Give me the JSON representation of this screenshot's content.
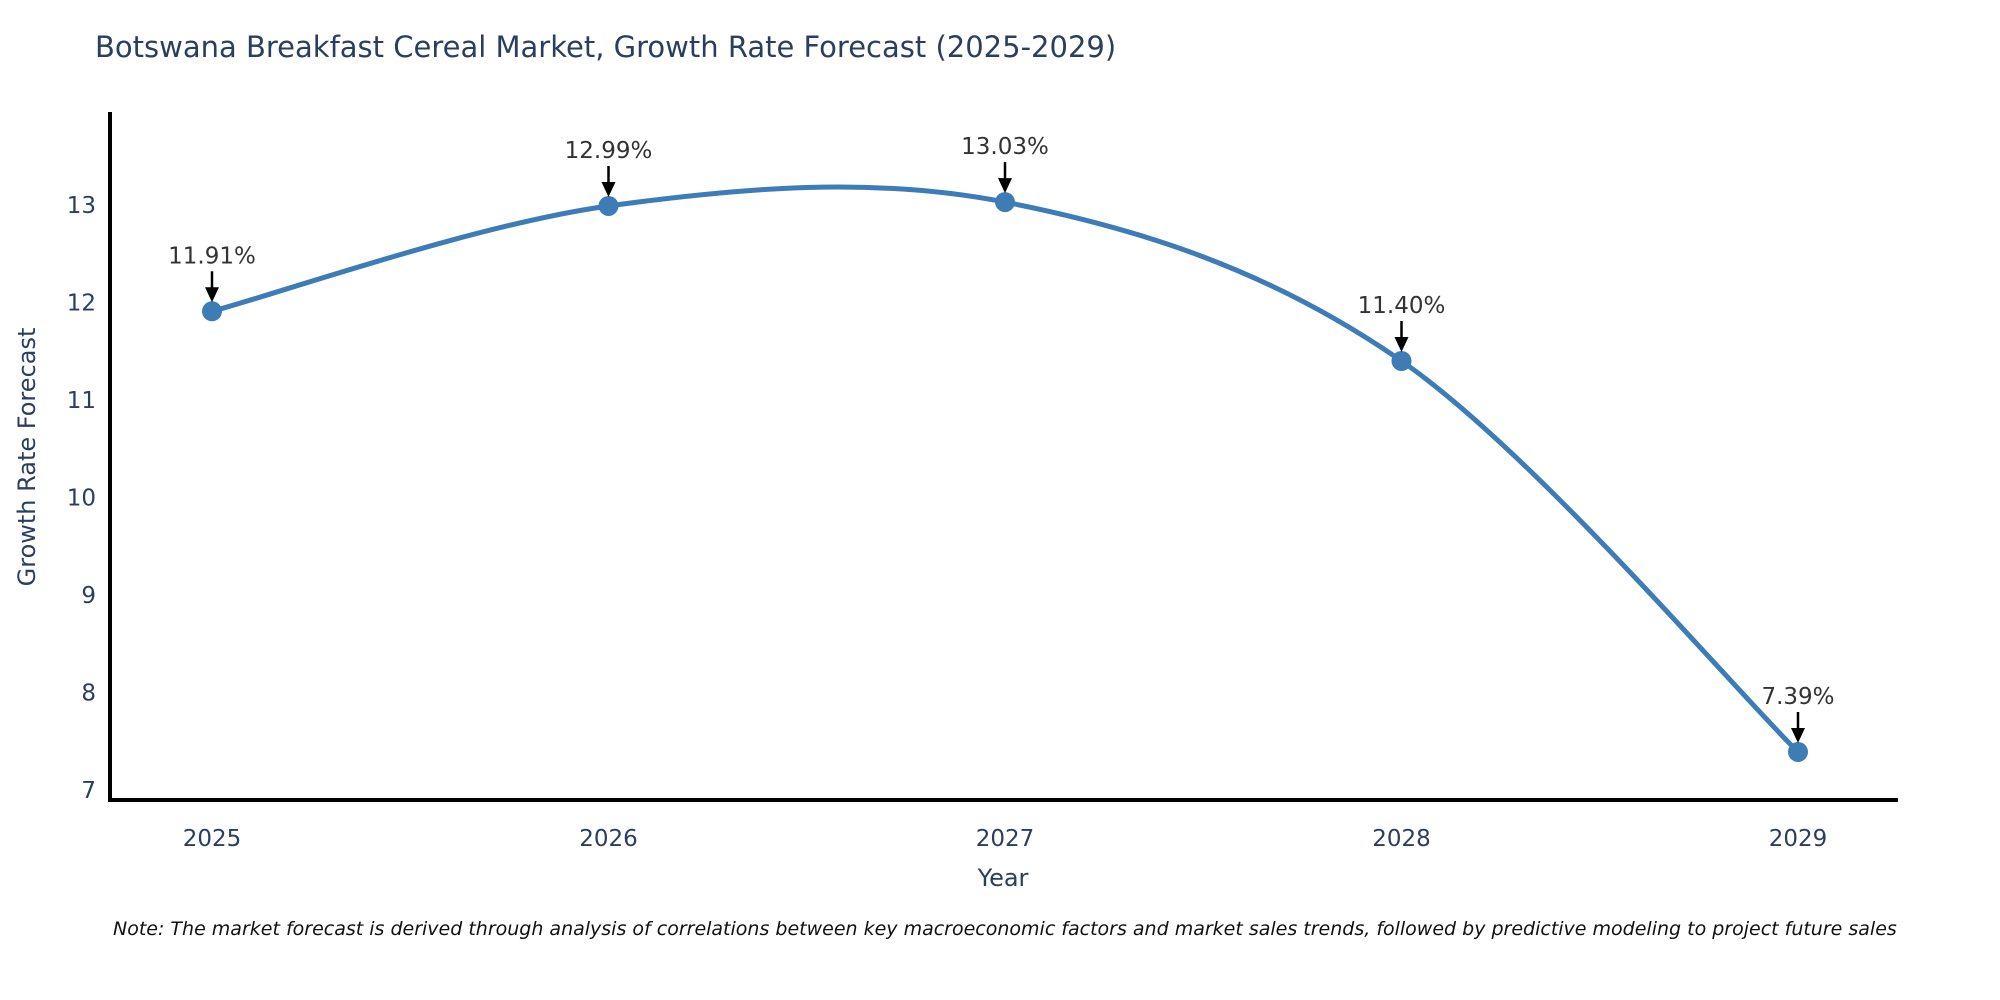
{
  "chart_data": {
    "type": "line",
    "title": "Botswana Breakfast Cereal Market, Growth Rate Forecast (2025-2029)",
    "x": [
      2025,
      2026,
      2027,
      2028,
      2029
    ],
    "values": [
      11.91,
      12.99,
      13.03,
      11.4,
      7.39
    ],
    "point_labels": [
      "11.91%",
      "12.99%",
      "13.03%",
      "11.40%",
      "7.39%"
    ],
    "xlabel": "Year",
    "ylabel": "Growth Rate Forecast",
    "yticks": [
      7,
      8,
      9,
      10,
      11,
      12,
      13
    ],
    "ylim": [
      6.9,
      13.6
    ],
    "line_shape": "spline",
    "grid": false,
    "legend": false,
    "line_color": "#3d7cb7",
    "marker_color": "#3e7cb5",
    "annotation_arrow_color": "#000000"
  },
  "note": {
    "text": "Note: The market forecast is derived through analysis of correlations between key macroeconomic factors and market sales trends, followed by predictive modeling to project future sales"
  },
  "colors": {
    "title_text": "#2a3f5f",
    "axis_text": "#2a3f5f",
    "annotation_text": "#333333",
    "axis_line": "#000000",
    "background": "#ffffff"
  }
}
